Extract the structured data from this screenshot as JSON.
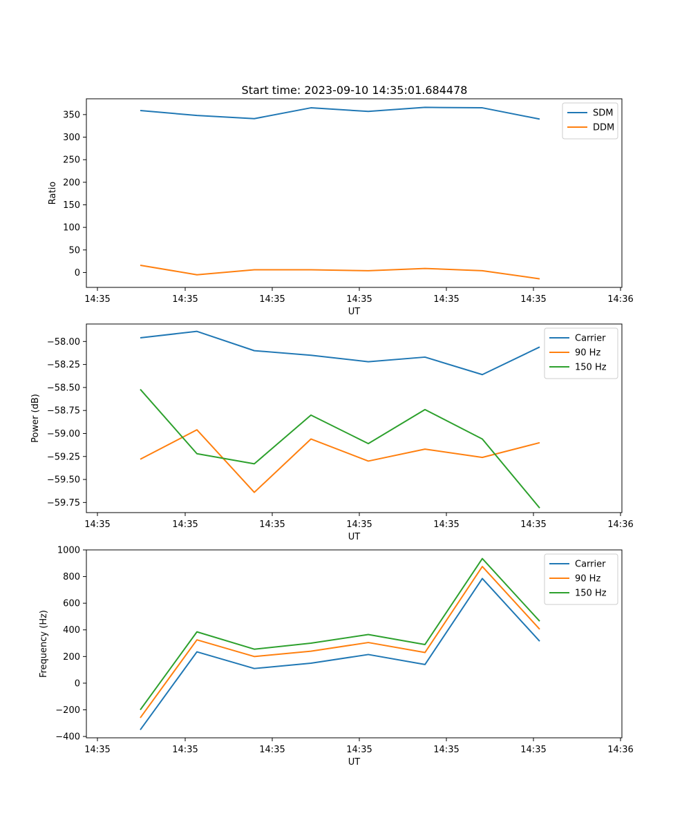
{
  "chart_data": [
    {
      "type": "line",
      "title": "Start time: 2023-09-10 14:35:01.684478",
      "xlabel": "UT",
      "ylabel": "Ratio",
      "ylim": [
        -33,
        385
      ],
      "x_tick_labels": [
        "14:35",
        "14:35",
        "14:35",
        "14:35",
        "14:35",
        "14:35",
        "14:36"
      ],
      "y_ticks": [
        0,
        50,
        100,
        150,
        200,
        250,
        300,
        350
      ],
      "legend_position": "top-right",
      "series": [
        {
          "name": "SDM",
          "color": "#1f77b4",
          "values": [
            359,
            348,
            341,
            365,
            357,
            366,
            365,
            340
          ]
        },
        {
          "name": "DDM",
          "color": "#ff7f0e",
          "values": [
            16,
            -5,
            6,
            6,
            4,
            9,
            4,
            -14
          ]
        }
      ]
    },
    {
      "type": "line",
      "title": "",
      "xlabel": "UT",
      "ylabel": "Power (dB)",
      "ylim": [
        -59.86,
        -57.81
      ],
      "x_tick_labels": [
        "14:35",
        "14:35",
        "14:35",
        "14:35",
        "14:35",
        "14:35",
        "14:36"
      ],
      "y_ticks": [
        -58.0,
        -58.25,
        -58.5,
        -58.75,
        -59.0,
        -59.25,
        -59.5,
        -59.75
      ],
      "y_tick_labels": [
        "−58.00",
        "−58.25",
        "−58.50",
        "−58.75",
        "−59.00",
        "−59.25",
        "−59.50",
        "−59.75"
      ],
      "legend_position": "top-right",
      "series": [
        {
          "name": "Carrier",
          "color": "#1f77b4",
          "values": [
            -57.96,
            -57.89,
            -58.1,
            -58.15,
            -58.22,
            -58.17,
            -58.36,
            -58.06
          ]
        },
        {
          "name": "90 Hz",
          "color": "#ff7f0e",
          "values": [
            -59.28,
            -58.96,
            -59.64,
            -59.06,
            -59.3,
            -59.17,
            -59.26,
            -59.1
          ]
        },
        {
          "name": "150 Hz",
          "color": "#2ca02c",
          "values": [
            -58.52,
            -59.22,
            -59.33,
            -58.8,
            -59.11,
            -58.74,
            -59.06,
            -59.81
          ]
        }
      ]
    },
    {
      "type": "line",
      "title": "",
      "xlabel": "UT",
      "ylabel": "Frequency (Hz)",
      "ylim": [
        -410,
        1000
      ],
      "x_tick_labels": [
        "14:35",
        "14:35",
        "14:35",
        "14:35",
        "14:35",
        "14:35",
        "14:36"
      ],
      "y_ticks": [
        -400,
        -200,
        0,
        200,
        400,
        600,
        800,
        1000
      ],
      "y_tick_labels": [
        "−400",
        "−200",
        "0",
        "200",
        "400",
        "600",
        "800",
        "1000"
      ],
      "legend_position": "top-right",
      "series": [
        {
          "name": "Carrier",
          "color": "#1f77b4",
          "values": [
            -350,
            235,
            110,
            150,
            215,
            140,
            785,
            315
          ]
        },
        {
          "name": "90 Hz",
          "color": "#ff7f0e",
          "values": [
            -260,
            325,
            200,
            240,
            305,
            230,
            875,
            405
          ]
        },
        {
          "name": "150 Hz",
          "color": "#2ca02c",
          "values": [
            -200,
            385,
            255,
            300,
            365,
            290,
            935,
            465
          ]
        }
      ]
    }
  ]
}
